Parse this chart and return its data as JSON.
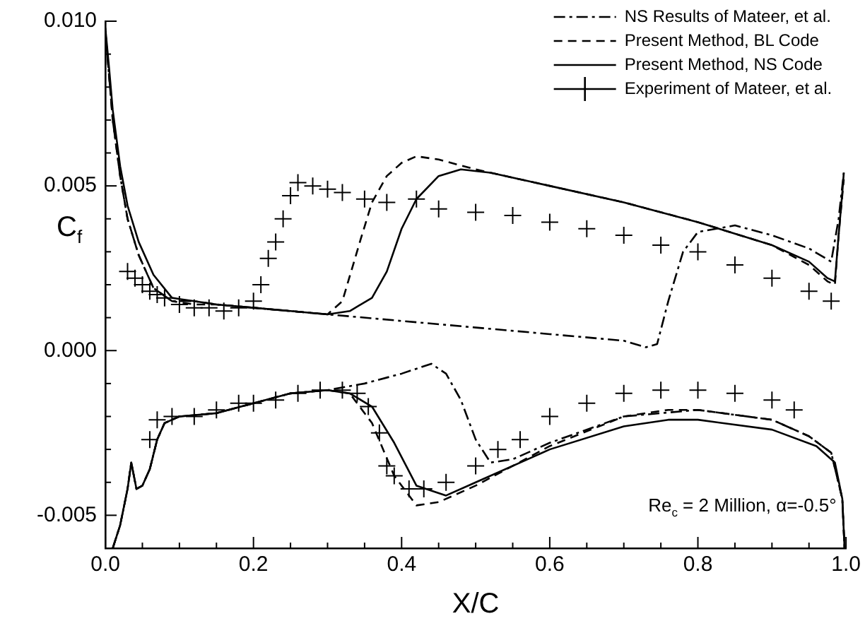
{
  "chart_data": {
    "type": "line",
    "xlabel": "X/C",
    "ylabel": "C$_{f}$",
    "annotations": [
      "Re$_{c}$ = 2 Million, α=-0.5°"
    ],
    "xlim": [
      0,
      1
    ],
    "ylim": [
      -0.006,
      0.01
    ],
    "xticks": [
      {
        "value": 0,
        "label": "0.0"
      },
      {
        "value": 0.05,
        "label": null
      },
      {
        "value": 0.1,
        "label": null
      },
      {
        "value": 0.15,
        "label": null
      },
      {
        "value": 0.2,
        "label": "0.2"
      },
      {
        "value": 0.25,
        "label": null
      },
      {
        "value": 0.3,
        "label": null
      },
      {
        "value": 0.35,
        "label": null
      },
      {
        "value": 0.4,
        "label": "0.4"
      },
      {
        "value": 0.45,
        "label": null
      },
      {
        "value": 0.5,
        "label": null
      },
      {
        "value": 0.55,
        "label": null
      },
      {
        "value": 0.6,
        "label": "0.6"
      },
      {
        "value": 0.65,
        "label": null
      },
      {
        "value": 0.7,
        "label": null
      },
      {
        "value": 0.75,
        "label": null
      },
      {
        "value": 0.8,
        "label": "0.8"
      },
      {
        "value": 0.85,
        "label": null
      },
      {
        "value": 0.9,
        "label": null
      },
      {
        "value": 0.95,
        "label": null
      },
      {
        "value": 1,
        "label": "1.0"
      }
    ],
    "yticks": [
      {
        "value": -0.006,
        "label": null
      },
      {
        "value": -0.005,
        "label": "-0.005"
      },
      {
        "value": -0.004,
        "label": null
      },
      {
        "value": -0.003,
        "label": null
      },
      {
        "value": -0.002,
        "label": null
      },
      {
        "value": -0.001,
        "label": null
      },
      {
        "value": 0,
        "label": "0.000"
      },
      {
        "value": 0.001,
        "label": null
      },
      {
        "value": 0.002,
        "label": null
      },
      {
        "value": 0.003,
        "label": null
      },
      {
        "value": 0.004,
        "label": null
      },
      {
        "value": 0.005,
        "label": "0.005"
      },
      {
        "value": 0.006,
        "label": null
      },
      {
        "value": 0.007,
        "label": null
      },
      {
        "value": 0.008,
        "label": null
      },
      {
        "value": 0.009,
        "label": null
      },
      {
        "value": 0.01,
        "label": "0.010"
      }
    ],
    "grid": false,
    "legend": "top right",
    "series": [
      {
        "name": "Present Method, NS Code",
        "color": "#000000",
        "line_style": "solid",
        "marker": "none",
        "x": [
          0,
          0.005,
          0.01,
          0.02,
          0.03,
          0.045,
          0.065,
          0.09,
          0.12,
          0.15,
          0.2,
          0.25,
          0.3,
          0.33,
          0.36,
          0.38,
          0.4,
          0.42,
          0.45,
          0.48,
          0.52,
          0.6,
          0.7,
          0.8,
          0.9,
          0.95,
          0.975,
          0.985,
          0.99,
          0.995,
          0.997
        ],
        "values": [
          0.0098,
          0.0086,
          0.0073,
          0.0056,
          0.0044,
          0.0033,
          0.0023,
          0.0016,
          0.0015,
          0.0014,
          0.0013,
          0.0012,
          0.0011,
          0.0012,
          0.0016,
          0.0024,
          0.0037,
          0.0046,
          0.0053,
          0.0055,
          0.0054,
          0.005,
          0.0045,
          0.0039,
          0.0032,
          0.0027,
          0.0022,
          0.0021,
          0.0035,
          0.0048,
          0.0054
        ]
      },
      {
        "color": "#000000",
        "line_style": "solid",
        "marker": "none",
        "x": [
          0.01,
          0.02,
          0.03,
          0.035,
          0.042,
          0.05,
          0.06,
          0.07,
          0.08,
          0.1,
          0.15,
          0.2,
          0.25,
          0.3,
          0.33,
          0.36,
          0.39,
          0.42,
          0.46,
          0.5,
          0.6,
          0.7,
          0.76,
          0.8,
          0.9,
          0.96,
          0.985,
          0.995,
          0.998
        ],
        "values": [
          -0.006,
          -0.0053,
          -0.0042,
          -0.0034,
          -0.0042,
          -0.0041,
          -0.0036,
          -0.0027,
          -0.0022,
          -0.002,
          -0.0019,
          -0.0016,
          -0.0013,
          -0.0012,
          -0.0013,
          -0.0017,
          -0.0028,
          -0.0041,
          -0.0044,
          -0.004,
          -0.003,
          -0.0023,
          -0.0021,
          -0.0021,
          -0.0024,
          -0.0029,
          -0.0034,
          -0.0045,
          -0.006
        ]
      },
      {
        "name": "Present Method, BL Code",
        "color": "#000000",
        "line_style": "dashed",
        "marker": "none",
        "x": [
          0,
          0.01,
          0.02,
          0.03,
          0.045,
          0.065,
          0.09,
          0.12,
          0.15,
          0.2,
          0.25,
          0.3,
          0.32,
          0.345,
          0.36,
          0.38,
          0.4,
          0.42,
          0.45,
          0.5,
          0.6,
          0.7,
          0.8,
          0.9,
          0.95,
          0.975,
          0.985,
          0.99,
          0.997
        ],
        "values": [
          0.0097,
          0.007,
          0.0053,
          0.004,
          0.0029,
          0.0019,
          0.0015,
          0.0014,
          0.0014,
          0.0013,
          0.0012,
          0.0011,
          0.0015,
          0.0034,
          0.0045,
          0.0053,
          0.0057,
          0.0059,
          0.0058,
          0.0055,
          0.005,
          0.0045,
          0.0039,
          0.0032,
          0.0026,
          0.0021,
          0.002,
          0.0035,
          0.0052
        ]
      },
      {
        "color": "#000000",
        "line_style": "dashed",
        "marker": "none",
        "x": [
          0.01,
          0.02,
          0.03,
          0.035,
          0.042,
          0.05,
          0.06,
          0.07,
          0.08,
          0.1,
          0.15,
          0.2,
          0.25,
          0.3,
          0.33,
          0.36,
          0.39,
          0.42,
          0.45,
          0.5,
          0.6,
          0.7,
          0.76,
          0.8,
          0.9,
          0.95,
          0.98,
          0.995,
          0.998
        ],
        "values": [
          -0.006,
          -0.0053,
          -0.0042,
          -0.0034,
          -0.0042,
          -0.0041,
          -0.0036,
          -0.0027,
          -0.0022,
          -0.002,
          -0.0019,
          -0.0016,
          -0.0013,
          -0.0012,
          -0.0013,
          -0.0022,
          -0.0038,
          -0.0047,
          -0.0046,
          -0.0041,
          -0.0029,
          -0.002,
          -0.0018,
          -0.0018,
          -0.0021,
          -0.0026,
          -0.0031,
          -0.0045,
          -0.006
        ]
      },
      {
        "name": "NS Results of Mateer, et al.",
        "color": "#000000",
        "line_style": "dashdot",
        "marker": "none",
        "x": [
          0,
          0.01,
          0.02,
          0.03,
          0.045,
          0.065,
          0.09,
          0.12,
          0.15,
          0.2,
          0.3,
          0.4,
          0.5,
          0.6,
          0.7,
          0.73,
          0.745,
          0.76,
          0.78,
          0.8,
          0.85,
          0.9,
          0.95,
          0.98,
          0.99,
          0.997
        ],
        "values": [
          0.0097,
          0.007,
          0.0053,
          0.004,
          0.0029,
          0.0019,
          0.0015,
          0.0015,
          0.0014,
          0.0013,
          0.0011,
          0.0009,
          0.0007,
          0.0005,
          0.0003,
          0.0001,
          0.0002,
          0.0015,
          0.003,
          0.0036,
          0.0038,
          0.0035,
          0.0031,
          0.0027,
          0.004,
          0.0054
        ]
      },
      {
        "color": "#000000",
        "line_style": "dashdot",
        "marker": "none",
        "x": [
          0.01,
          0.02,
          0.03,
          0.035,
          0.042,
          0.05,
          0.06,
          0.07,
          0.08,
          0.1,
          0.15,
          0.2,
          0.25,
          0.3,
          0.35,
          0.4,
          0.44,
          0.46,
          0.48,
          0.5,
          0.52,
          0.55,
          0.6,
          0.7,
          0.8,
          0.9,
          0.95,
          0.98,
          0.995,
          0.998
        ],
        "values": [
          -0.006,
          -0.0053,
          -0.0042,
          -0.0034,
          -0.0042,
          -0.0041,
          -0.0036,
          -0.0027,
          -0.0022,
          -0.002,
          -0.0019,
          -0.0016,
          -0.0013,
          -0.0012,
          -0.001,
          -0.0007,
          -0.0004,
          -0.0007,
          -0.0015,
          -0.0027,
          -0.0034,
          -0.0033,
          -0.0028,
          -0.002,
          -0.0018,
          -0.0021,
          -0.0026,
          -0.0031,
          -0.0045,
          -0.006
        ]
      },
      {
        "name": "Experiment of Mateer, et al.",
        "type": "scatter",
        "color": "#000000",
        "marker": "cross",
        "x": [
          0.03,
          0.04,
          0.05,
          0.06,
          0.07,
          0.08,
          0.1,
          0.12,
          0.14,
          0.16,
          0.18,
          0.2,
          0.21,
          0.22,
          0.23,
          0.24,
          0.25,
          0.26,
          0.28,
          0.3,
          0.32,
          0.35,
          0.38,
          0.42,
          0.45,
          0.5,
          0.55,
          0.6,
          0.65,
          0.7,
          0.75,
          0.8,
          0.85,
          0.9,
          0.95,
          0.98,
          0.06,
          0.07,
          0.09,
          0.12,
          0.15,
          0.18,
          0.2,
          0.23,
          0.26,
          0.29,
          0.32,
          0.34,
          0.355,
          0.37,
          0.38,
          0.39,
          0.41,
          0.43,
          0.46,
          0.5,
          0.53,
          0.56,
          0.6,
          0.65,
          0.7,
          0.75,
          0.8,
          0.85,
          0.9,
          0.93
        ],
        "values": [
          0.0024,
          0.0022,
          0.002,
          0.0018,
          0.0017,
          0.0016,
          0.0014,
          0.0013,
          0.0013,
          0.0012,
          0.0013,
          0.0015,
          0.002,
          0.0028,
          0.0033,
          0.004,
          0.0047,
          0.0051,
          0.005,
          0.0049,
          0.0048,
          0.0046,
          0.0045,
          0.0046,
          0.0043,
          0.0042,
          0.0041,
          0.0039,
          0.0037,
          0.0035,
          0.0032,
          0.003,
          0.0026,
          0.0022,
          0.0018,
          0.0015,
          -0.0027,
          -0.0021,
          -0.002,
          -0.002,
          -0.0018,
          -0.0016,
          -0.0016,
          -0.0015,
          -0.0013,
          -0.0012,
          -0.0012,
          -0.0013,
          -0.0017,
          -0.0025,
          -0.0035,
          -0.0038,
          -0.0042,
          -0.0042,
          -0.004,
          -0.0035,
          -0.003,
          -0.0027,
          -0.002,
          -0.0016,
          -0.0013,
          -0.0012,
          -0.0012,
          -0.0013,
          -0.0015,
          -0.0018
        ]
      }
    ]
  }
}
